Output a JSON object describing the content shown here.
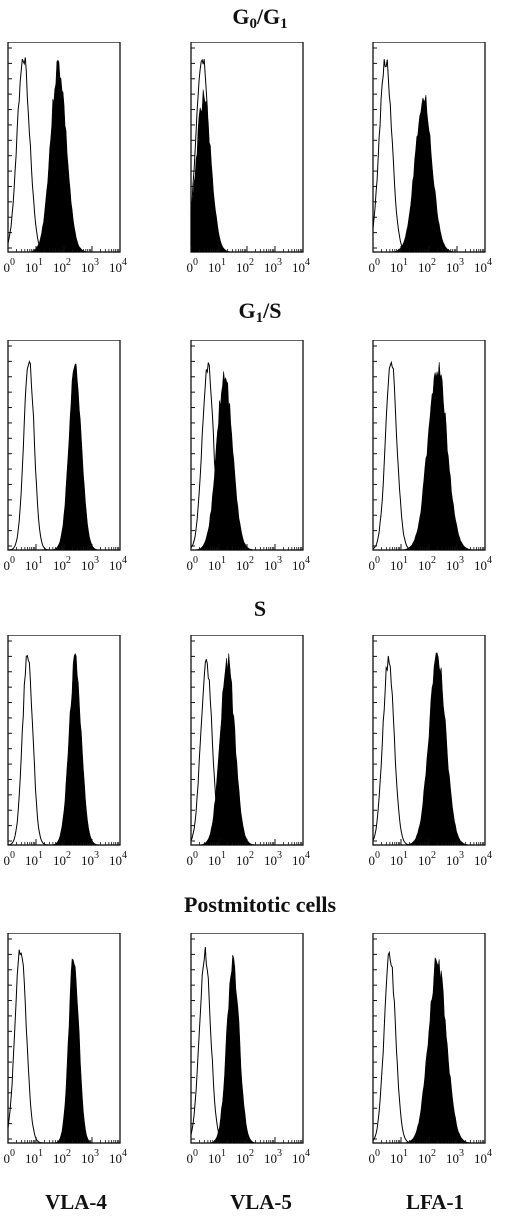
{
  "figure": {
    "column_labels": [
      "VLA-4",
      "VLA-5",
      "LFA-1"
    ]
  },
  "rows": [
    {
      "phase": "G0/G1",
      "title_main": "G",
      "title_sub1": "0",
      "title_mid": "/G",
      "title_sub2": "1"
    },
    {
      "phase": "G1/S",
      "title_main": "G",
      "title_sub1": "1",
      "title_mid": "/S",
      "title_sub2": ""
    },
    {
      "phase": "S",
      "title_main": "S",
      "title_sub1": "",
      "title_mid": "",
      "title_sub2": ""
    },
    {
      "phase": "Postmitotic cells",
      "title_main": "Postmitotic cells",
      "title_sub1": "",
      "title_mid": "",
      "title_sub2": ""
    }
  ],
  "chart_data": {
    "type": "area",
    "description_axis": "log fluorescence intensity",
    "x_ticks": [
      "10^0",
      "10^1",
      "10^2",
      "10^3",
      "10^4"
    ],
    "xlim_log10": [
      0,
      4
    ],
    "ylim": [
      0,
      1
    ],
    "series_types": {
      "control": "open outline",
      "stained": "filled black"
    },
    "panels": [
      {
        "row": "G0/G1",
        "column": "VLA-4",
        "control": {
          "peak_log10": 0.55,
          "width": 0.22,
          "height": 1.0
        },
        "stained": {
          "peak_log10": 1.8,
          "width": 0.28,
          "height": 0.96
        }
      },
      {
        "row": "G0/G1",
        "column": "VLA-5",
        "control": {
          "peak_log10": 0.4,
          "width": 0.22,
          "height": 1.0
        },
        "stained": {
          "peak_log10": 0.45,
          "width": 0.26,
          "height": 0.8
        }
      },
      {
        "row": "G0/G1",
        "column": "LFA-1",
        "control": {
          "peak_log10": 0.45,
          "width": 0.22,
          "height": 0.98
        },
        "stained": {
          "peak_log10": 1.8,
          "width": 0.3,
          "height": 0.8
        }
      },
      {
        "row": "G1/S",
        "column": "VLA-4",
        "control": {
          "peak_log10": 0.75,
          "width": 0.18,
          "height": 0.98
        },
        "stained": {
          "peak_log10": 2.4,
          "width": 0.22,
          "height": 0.96
        }
      },
      {
        "row": "G1/S",
        "column": "VLA-5",
        "control": {
          "peak_log10": 0.6,
          "width": 0.2,
          "height": 0.94
        },
        "stained": {
          "peak_log10": 1.2,
          "width": 0.28,
          "height": 0.9
        }
      },
      {
        "row": "G1/S",
        "column": "LFA-1",
        "control": {
          "peak_log10": 0.65,
          "width": 0.2,
          "height": 0.95
        },
        "stained": {
          "peak_log10": 2.3,
          "width": 0.34,
          "height": 0.94
        }
      },
      {
        "row": "S",
        "column": "VLA-4",
        "control": {
          "peak_log10": 0.7,
          "width": 0.18,
          "height": 0.98
        },
        "stained": {
          "peak_log10": 2.4,
          "width": 0.22,
          "height": 0.94
        }
      },
      {
        "row": "S",
        "column": "VLA-5",
        "control": {
          "peak_log10": 0.55,
          "width": 0.2,
          "height": 0.93
        },
        "stained": {
          "peak_log10": 1.3,
          "width": 0.26,
          "height": 0.95
        }
      },
      {
        "row": "S",
        "column": "LFA-1",
        "control": {
          "peak_log10": 0.55,
          "width": 0.2,
          "height": 0.94
        },
        "stained": {
          "peak_log10": 2.3,
          "width": 0.3,
          "height": 0.96
        }
      },
      {
        "row": "Postmitotic cells",
        "column": "VLA-4",
        "control": {
          "peak_log10": 0.45,
          "width": 0.2,
          "height": 0.98
        },
        "stained": {
          "peak_log10": 2.35,
          "width": 0.18,
          "height": 0.96
        }
      },
      {
        "row": "Postmitotic cells",
        "column": "VLA-5",
        "control": {
          "peak_log10": 0.5,
          "width": 0.2,
          "height": 0.96
        },
        "stained": {
          "peak_log10": 1.5,
          "width": 0.22,
          "height": 0.94
        }
      },
      {
        "row": "Postmitotic cells",
        "column": "LFA-1",
        "control": {
          "peak_log10": 0.6,
          "width": 0.2,
          "height": 0.96
        },
        "stained": {
          "peak_log10": 2.3,
          "width": 0.32,
          "height": 0.93
        }
      }
    ]
  }
}
